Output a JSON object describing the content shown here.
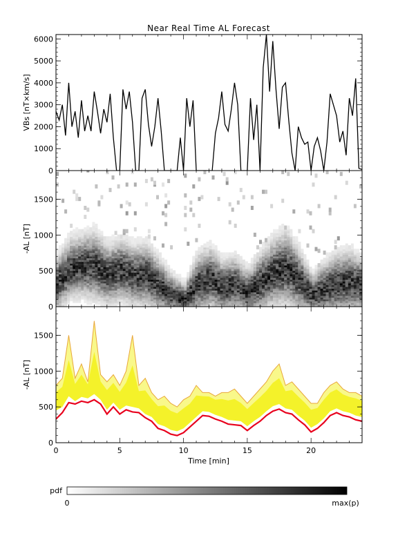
{
  "figure": {
    "title": "Near Real Time AL Forecast",
    "xlabel": "Time [min]",
    "colorbar": {
      "label": "pdf",
      "min_label": "0",
      "max_label": "max(p)"
    },
    "colors": {
      "line": "#000000",
      "band_fill": "#f4f22a",
      "band_edge": "#e8a63a",
      "median": "#e8001c"
    }
  },
  "chart_data": [
    {
      "type": "line",
      "ylabel": "VBs [nT×km/s]",
      "xlim": [
        0,
        24
      ],
      "ylim": [
        0,
        6200
      ],
      "yticks": [
        0,
        1000,
        2000,
        3000,
        4000,
        5000,
        6000
      ],
      "xticks": [
        0,
        5,
        10,
        15,
        20
      ],
      "x": [
        0,
        0.25,
        0.5,
        0.75,
        1.0,
        1.25,
        1.5,
        1.75,
        2.0,
        2.25,
        2.5,
        2.75,
        3.0,
        3.25,
        3.5,
        3.75,
        4.0,
        4.25,
        4.5,
        4.75,
        5.0,
        5.25,
        5.5,
        5.75,
        6.0,
        6.25,
        6.5,
        6.75,
        7.0,
        7.25,
        7.5,
        7.75,
        8.0,
        8.25,
        8.5,
        8.75,
        9.0,
        9.25,
        9.5,
        9.75,
        10.0,
        10.25,
        10.5,
        10.75,
        11.0,
        11.25,
        11.5,
        11.75,
        12.0,
        12.25,
        12.5,
        12.75,
        13.0,
        13.25,
        13.5,
        13.75,
        14.0,
        14.25,
        14.5,
        14.75,
        15.0,
        15.25,
        15.5,
        15.75,
        16.0,
        16.25,
        16.5,
        16.75,
        17.0,
        17.25,
        17.5,
        17.75,
        18.0,
        18.25,
        18.5,
        18.75,
        19.0,
        19.25,
        19.5,
        19.75,
        20.0,
        20.25,
        20.5,
        20.75,
        21.0,
        21.25,
        21.5,
        21.75,
        22.0,
        22.25,
        22.5,
        22.75,
        23.0,
        23.25,
        23.5,
        23.75,
        24.0
      ],
      "y": [
        2700,
        2300,
        3000,
        1600,
        4000,
        2000,
        2700,
        1500,
        3200,
        1800,
        2500,
        1800,
        3600,
        2700,
        1700,
        2800,
        2200,
        3500,
        1500,
        0,
        0,
        3700,
        2800,
        3600,
        2200,
        0,
        0,
        3300,
        3700,
        2100,
        1100,
        2000,
        3300,
        1800,
        0,
        0,
        0,
        0,
        0,
        1500,
        0,
        3300,
        2000,
        3200,
        0,
        0,
        0,
        0,
        0,
        0,
        1700,
        2400,
        3600,
        2100,
        1800,
        2800,
        4000,
        3000,
        0,
        0,
        0,
        3300,
        1400,
        3000,
        0,
        4700,
        6200,
        3600,
        5900,
        3700,
        1900,
        3800,
        4000,
        2300,
        800,
        0,
        2000,
        1500,
        1200,
        1300,
        0,
        1100,
        1500,
        900,
        0,
        1300,
        3500,
        3000,
        2500,
        1300,
        1800,
        700,
        3300,
        2500,
        4200,
        100,
        50
      ]
    },
    {
      "type": "heatmap",
      "ylabel": "-AL [nT]",
      "xlim": [
        0,
        24
      ],
      "ylim": [
        0,
        1900
      ],
      "yticks": [
        0,
        500,
        1000,
        1500
      ],
      "xticks": [
        0,
        5,
        10,
        15,
        20
      ],
      "x": [
        0,
        1,
        2,
        3,
        4,
        5,
        6,
        7,
        8,
        9,
        10,
        11,
        12,
        13,
        14,
        15,
        16,
        17,
        18,
        19,
        20,
        21,
        22,
        23,
        24
      ],
      "center": [
        300,
        520,
        560,
        560,
        430,
        500,
        420,
        430,
        280,
        150,
        80,
        300,
        380,
        250,
        300,
        180,
        320,
        470,
        520,
        350,
        150,
        230,
        300,
        330,
        270
      ],
      "spread": [
        200,
        220,
        230,
        250,
        220,
        230,
        220,
        230,
        200,
        150,
        120,
        220,
        230,
        200,
        200,
        170,
        230,
        250,
        280,
        230,
        150,
        200,
        230,
        230,
        200
      ]
    },
    {
      "type": "area",
      "ylabel": "-AL [nT]",
      "xlim": [
        0,
        24
      ],
      "ylim": [
        0,
        1900
      ],
      "yticks": [
        0,
        500,
        1000,
        1500
      ],
      "xticks": [
        0,
        5,
        10,
        15,
        20
      ],
      "x": [
        0,
        0.5,
        1.0,
        1.5,
        2.0,
        2.5,
        3.0,
        3.5,
        4.0,
        4.5,
        5.0,
        5.5,
        6.0,
        6.5,
        7.0,
        7.5,
        8.0,
        8.5,
        9.0,
        9.5,
        10.0,
        10.5,
        11.0,
        11.5,
        12.0,
        12.5,
        13.0,
        13.5,
        14.0,
        14.5,
        15.0,
        15.5,
        16.0,
        16.5,
        17.0,
        17.5,
        18.0,
        18.5,
        19.0,
        19.5,
        20.0,
        20.5,
        21.0,
        21.5,
        22.0,
        22.5,
        23.0,
        23.5,
        24.0
      ],
      "median": [
        330,
        420,
        560,
        540,
        580,
        560,
        600,
        540,
        400,
        500,
        400,
        460,
        430,
        420,
        350,
        300,
        200,
        170,
        120,
        100,
        140,
        220,
        300,
        380,
        370,
        330,
        300,
        260,
        250,
        240,
        170,
        240,
        300,
        380,
        440,
        470,
        420,
        400,
        320,
        250,
        150,
        200,
        280,
        380,
        420,
        380,
        360,
        320,
        300
      ],
      "upper": [
        800,
        900,
        1500,
        900,
        1100,
        850,
        1700,
        950,
        850,
        950,
        800,
        1000,
        1500,
        800,
        900,
        700,
        600,
        650,
        550,
        500,
        600,
        650,
        800,
        700,
        700,
        650,
        700,
        700,
        750,
        650,
        550,
        650,
        750,
        850,
        1000,
        1100,
        800,
        850,
        750,
        650,
        550,
        550,
        700,
        800,
        850,
        750,
        700,
        700,
        650
      ],
      "lower": [
        450,
        500,
        650,
        580,
        640,
        620,
        680,
        600,
        460,
        560,
        460,
        520,
        500,
        480,
        400,
        360,
        260,
        230,
        180,
        160,
        200,
        280,
        360,
        440,
        430,
        390,
        360,
        320,
        310,
        300,
        230,
        300,
        360,
        440,
        510,
        540,
        480,
        460,
        380,
        310,
        210,
        260,
        340,
        440,
        480,
        440,
        420,
        380,
        360
      ]
    }
  ]
}
